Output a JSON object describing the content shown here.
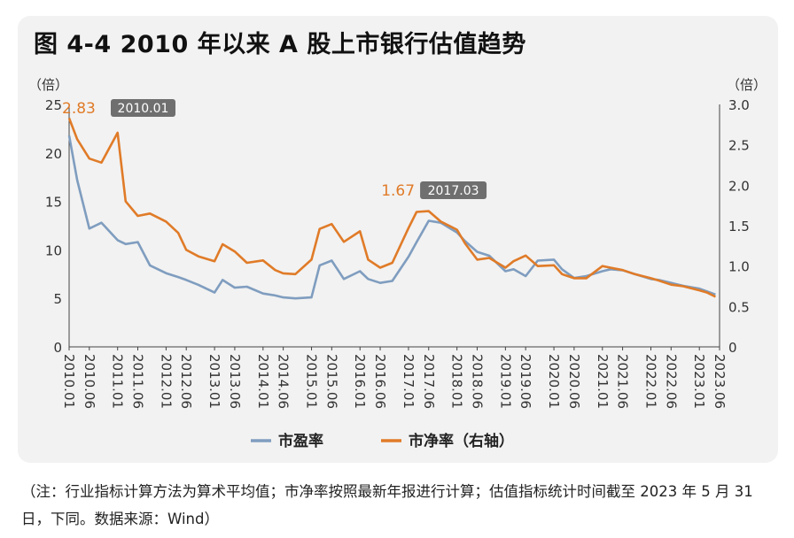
{
  "title": "图 4-4   2010 年以来 A 股上市银行估值趋势",
  "note": "（注：行业指标计算方法为算术平均值；市净率按照最新年报进行计算；估值指标统计时间截至 2023 年 5 月 31 日，下同。数据来源：Wind）",
  "colors": {
    "pe": "#7f9dbf",
    "pb": "#e07b28",
    "tag": "#6f6f6f"
  },
  "chart_data": {
    "type": "line",
    "xlabel": "",
    "y_left_label": "（倍）",
    "y_right_label": "（倍）",
    "y_left_lim": [
      0,
      25
    ],
    "y_right_lim": [
      0,
      3.0
    ],
    "y_left_ticks": [
      "0",
      "5",
      "10",
      "15",
      "20",
      "25"
    ],
    "y_right_ticks": [
      "0",
      "0.5",
      "1.0",
      "1.5",
      "2.0",
      "2.5",
      "3.0"
    ],
    "x_tick_labels": [
      "2010.01",
      "2010.06",
      "2011.01",
      "2011.06",
      "2012.01",
      "2012.06",
      "2013.01",
      "2013.06",
      "2014.01",
      "2014.06",
      "2015.01",
      "2015.06",
      "2016.01",
      "2016.06",
      "2017.01",
      "2017.06",
      "2018.01",
      "2018.06",
      "2019.01",
      "2019.06",
      "2020.01",
      "2020.06",
      "2021.01",
      "2021.06",
      "2022.01",
      "2022.06",
      "2023.01",
      "2023.06"
    ],
    "x": [
      "2010.01",
      "2010.03",
      "2010.06",
      "2010.09",
      "2011.01",
      "2011.03",
      "2011.06",
      "2011.09",
      "2012.01",
      "2012.04",
      "2012.06",
      "2012.09",
      "2013.01",
      "2013.03",
      "2013.06",
      "2013.09",
      "2014.01",
      "2014.04",
      "2014.06",
      "2014.09",
      "2015.01",
      "2015.03",
      "2015.06",
      "2015.09",
      "2016.01",
      "2016.03",
      "2016.06",
      "2016.09",
      "2017.01",
      "2017.03",
      "2017.06",
      "2017.09",
      "2018.01",
      "2018.03",
      "2018.06",
      "2018.09",
      "2019.01",
      "2019.03",
      "2019.06",
      "2019.09",
      "2020.01",
      "2020.03",
      "2020.06",
      "2020.09",
      "2021.01",
      "2021.03",
      "2021.06",
      "2021.09",
      "2022.01",
      "2022.03",
      "2022.06",
      "2022.09",
      "2023.01",
      "2023.03",
      "2023.05"
    ],
    "series": [
      {
        "name": "市盈率",
        "axis": "left",
        "values": [
          21.8,
          17.2,
          12.2,
          12.8,
          11.0,
          10.6,
          10.8,
          8.4,
          7.6,
          7.2,
          6.9,
          6.4,
          5.6,
          6.9,
          6.1,
          6.2,
          5.5,
          5.3,
          5.1,
          5.0,
          5.1,
          8.4,
          8.9,
          7.0,
          7.8,
          7.0,
          6.6,
          6.8,
          9.3,
          10.8,
          13.0,
          12.8,
          11.8,
          10.9,
          9.8,
          9.4,
          7.8,
          8.0,
          7.3,
          8.9,
          9.0,
          8.0,
          7.1,
          7.3,
          7.8,
          8.0,
          7.9,
          7.5,
          7.0,
          6.9,
          6.6,
          6.3,
          6.0,
          5.7,
          5.4
        ]
      },
      {
        "name": "市净率（右轴）",
        "axis": "right",
        "values": [
          2.83,
          2.57,
          2.33,
          2.28,
          2.65,
          1.8,
          1.62,
          1.65,
          1.55,
          1.41,
          1.2,
          1.12,
          1.06,
          1.27,
          1.18,
          1.04,
          1.07,
          0.95,
          0.91,
          0.9,
          1.08,
          1.46,
          1.52,
          1.3,
          1.43,
          1.08,
          0.98,
          1.04,
          1.47,
          1.67,
          1.68,
          1.55,
          1.45,
          1.28,
          1.08,
          1.1,
          0.98,
          1.06,
          1.13,
          1.0,
          1.01,
          0.9,
          0.85,
          0.85,
          1.0,
          0.98,
          0.95,
          0.9,
          0.85,
          0.82,
          0.77,
          0.75,
          0.7,
          0.67,
          0.62
        ]
      }
    ],
    "annotations": [
      {
        "label": "2.83",
        "date": "2010.01",
        "x": "2010.01",
        "y": 2.83,
        "axis": "right"
      },
      {
        "label": "1.67",
        "date": "2017.03",
        "x": "2017.03",
        "y": 1.67,
        "axis": "right"
      }
    ],
    "legend": [
      {
        "label": "市盈率"
      },
      {
        "label": "市净率（右轴）"
      }
    ],
    "legend_position": "bottom",
    "grid": false
  }
}
